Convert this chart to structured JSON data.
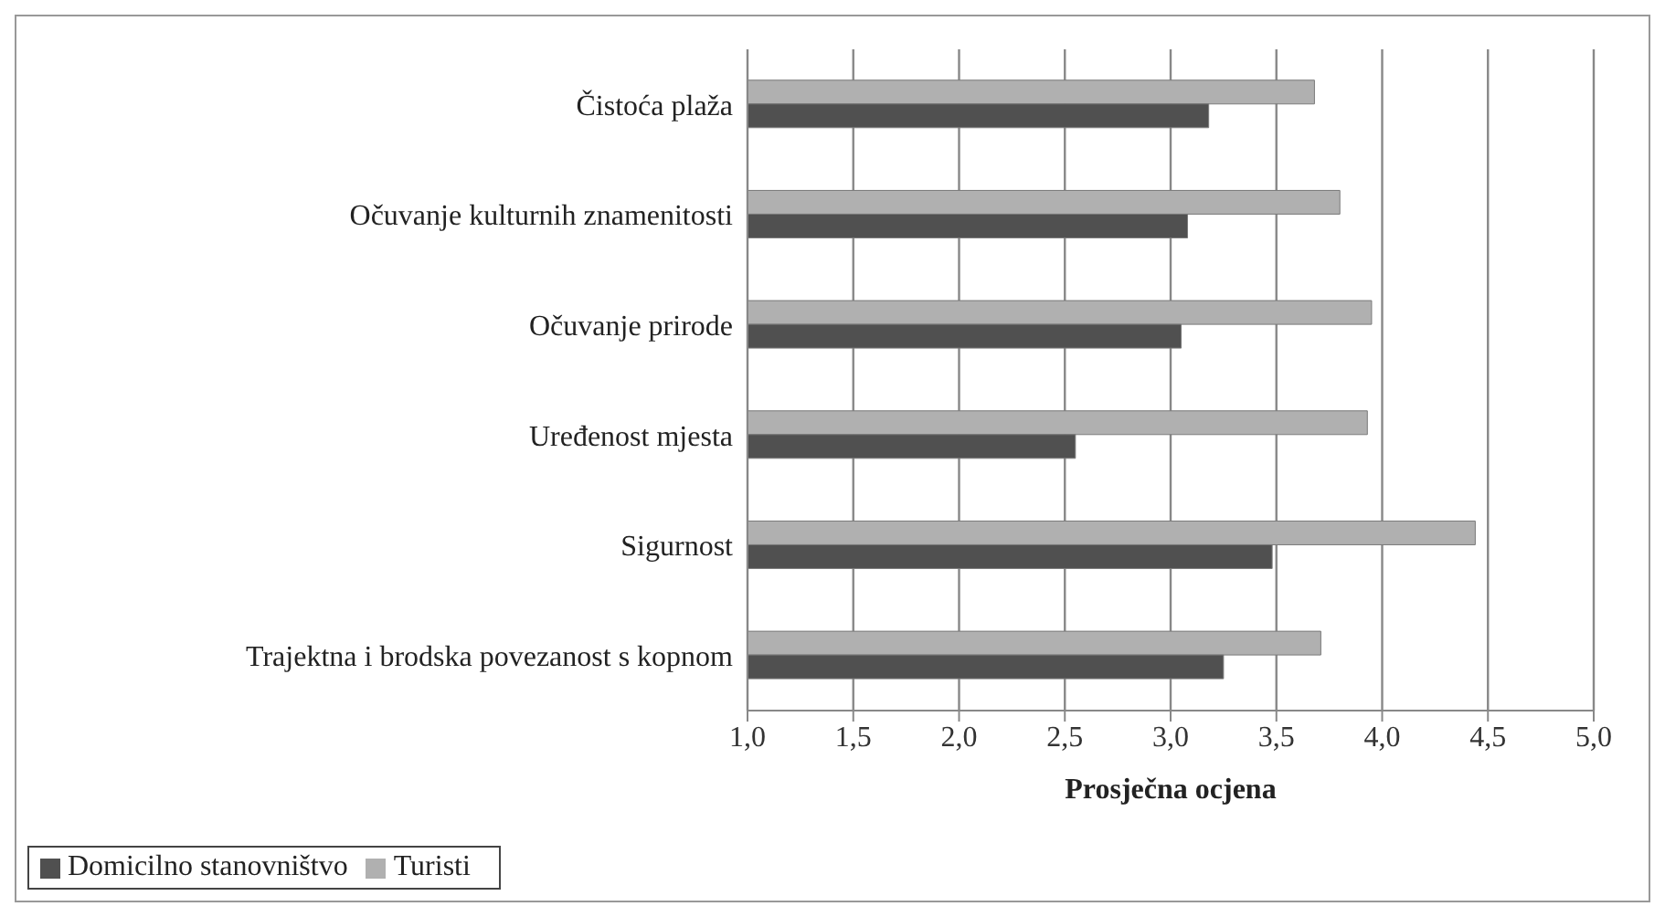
{
  "chart_data": {
    "type": "bar",
    "orientation": "horizontal",
    "xlabel": "Prosječna ocjena",
    "categories": [
      "Čistoća plaža",
      "Očuvanje kulturnih znamenitosti",
      "Očuvanje prirode",
      "Uređenost mjesta",
      "Sigurnost",
      "Trajektna i brodska povezanost s kopnom"
    ],
    "series": [
      {
        "name": "Turisti",
        "color": "#b0b0b0",
        "values": [
          3.68,
          3.8,
          3.95,
          3.93,
          4.44,
          3.71
        ]
      },
      {
        "name": "Domicilno stanovništvo",
        "color": "#505050",
        "values": [
          3.18,
          3.08,
          3.05,
          2.55,
          3.48,
          3.25
        ]
      }
    ],
    "xlim": [
      1,
      5
    ],
    "xticks": [
      {
        "value": 1,
        "label": "1,0"
      },
      {
        "value": 1.5,
        "label": "1,5"
      },
      {
        "value": 2,
        "label": "2,0"
      },
      {
        "value": 2.5,
        "label": "2,5"
      },
      {
        "value": 3,
        "label": "3,0"
      },
      {
        "value": 3.5,
        "label": "3,5"
      },
      {
        "value": 4,
        "label": "4,0"
      },
      {
        "value": 4.5,
        "label": "4,5"
      },
      {
        "value": 5,
        "label": "5,0"
      }
    ],
    "grid": "x",
    "legend": "bottom left"
  }
}
